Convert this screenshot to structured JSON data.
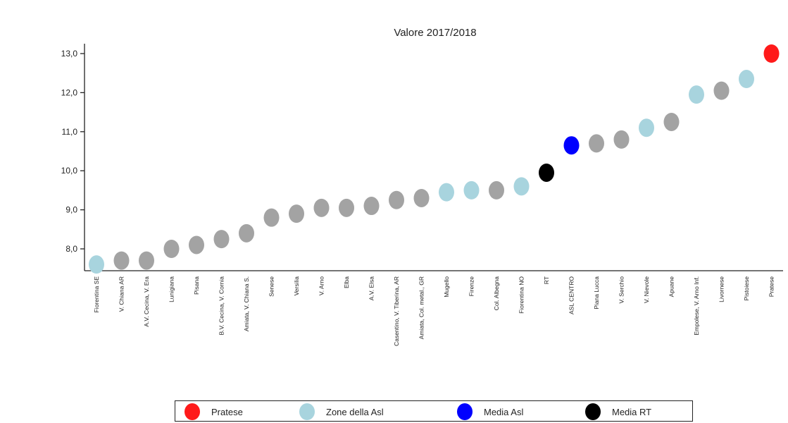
{
  "chart_data": {
    "type": "scatter",
    "title": "Valore 2017/2018",
    "xlabel": "",
    "ylabel": "",
    "ylim": [
      7.4,
      13.5
    ],
    "yticks": [
      8.0,
      9.0,
      10.0,
      11.0,
      12.0,
      13.0
    ],
    "ytick_labels": [
      "8,0",
      "9,0",
      "10,0",
      "11,0",
      "12,0",
      "13,0"
    ],
    "grid": false,
    "legend_position": "bottom",
    "categories": [
      "Fiorentina SE",
      "V. Chiana AR",
      "A.V. Cecina, V. Era",
      "Lunigiana",
      "Pisana",
      "B.V. Cecina, V. Cornia",
      "Amiata, V. Chiana S.",
      "Senese",
      "Versilia",
      "V. Arno",
      "Elba",
      "A.V. Elsa",
      "Casentino, V. Tiberina, AR",
      "Amiata, Col. metal., GR",
      "Mugello",
      "Firenze",
      "Col. Albegna",
      "Fiorentina NO",
      "RT",
      "ASL CENTRO",
      "Piana Lucca",
      "V. Serchio",
      "V. Nievole",
      "Apuane",
      "Empolese, V. Arno Inf.",
      "Livornese",
      "Pistoiese",
      "Pratese"
    ],
    "values": [
      7.6,
      7.7,
      7.7,
      8.0,
      8.1,
      8.25,
      8.4,
      8.8,
      8.9,
      9.05,
      9.05,
      9.1,
      9.25,
      9.3,
      9.45,
      9.5,
      9.5,
      9.6,
      9.95,
      10.65,
      10.7,
      10.8,
      11.1,
      11.25,
      11.95,
      12.05,
      12.35,
      13.0
    ],
    "point_groups": [
      "zone",
      "other",
      "other",
      "other",
      "other",
      "other",
      "other",
      "other",
      "other",
      "other",
      "other",
      "other",
      "other",
      "other",
      "zone",
      "zone",
      "other",
      "zone",
      "rt",
      "asl",
      "other",
      "other",
      "zone",
      "other",
      "zone",
      "other",
      "zone",
      "pratese"
    ],
    "group_colors": {
      "pratese": "#ff1a1a",
      "zone": "#a8d4de",
      "asl": "#0000ff",
      "rt": "#000000",
      "other": "#a3a3a3"
    },
    "legend": [
      {
        "label": "Pratese",
        "color": "#ff1a1a"
      },
      {
        "label": "Zone della Asl",
        "color": "#a8d4de"
      },
      {
        "label": "Media Asl",
        "color": "#0000ff"
      },
      {
        "label": "Media RT",
        "color": "#000000"
      }
    ]
  }
}
